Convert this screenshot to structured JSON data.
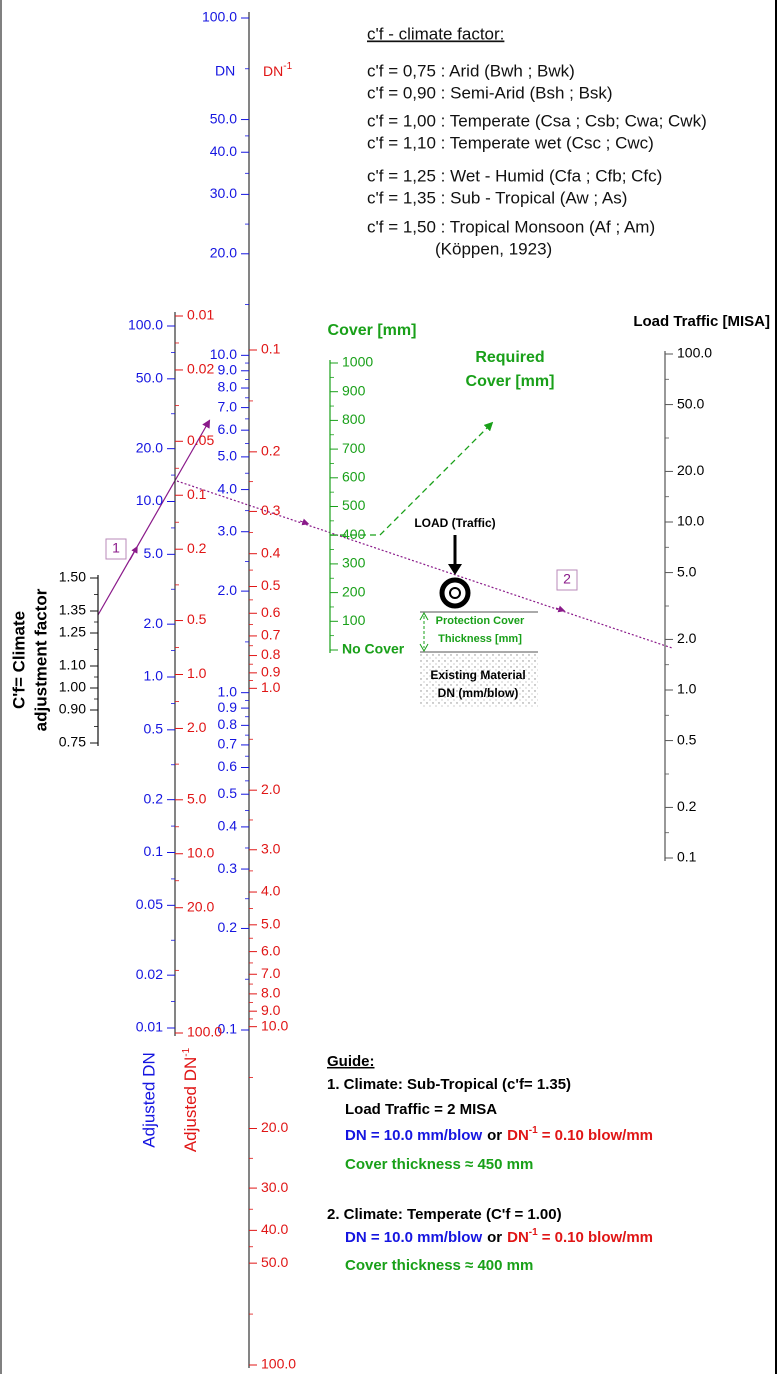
{
  "legend": {
    "title": "c'f - climate factor:",
    "items": [
      "c'f = 0,75 : Arid (Bwh ; Bwk)",
      "c'f = 0,90 : Semi-Arid (Bsh ; Bsk)",
      "c'f = 1,00 : Temperate  (Csa ; Csb; Cwa; Cwk)",
      "c'f = 1,10 : Temperate wet (Csc ; Cwc)",
      "c'f = 1,25 : Wet - Humid (Cfa ; Cfb; Cfc)",
      "c'f = 1,35 : Sub - Tropical (Aw ; As)",
      "c'f = 1,50 : Tropical Monsoon (Af ; Am)"
    ],
    "source": "(Köppen, 1923)"
  },
  "main_scale": {
    "dn_label": "DN",
    "dn_inv_label": {
      "base": "DN",
      "sup": "-1"
    },
    "dn_ticks": [
      {
        "value": 100,
        "label": "100.0"
      },
      {
        "value": 50,
        "label": "50.0"
      },
      {
        "value": 40,
        "label": "40.0"
      },
      {
        "value": 30,
        "label": "30.0"
      },
      {
        "value": 20,
        "label": "20.0"
      },
      {
        "value": 10,
        "label": "10.0"
      },
      {
        "value": 9,
        "label": "9.0"
      },
      {
        "value": 8,
        "label": "8.0"
      },
      {
        "value": 7,
        "label": "7.0"
      },
      {
        "value": 6,
        "label": "6.0"
      },
      {
        "value": 5,
        "label": "5.0"
      },
      {
        "value": 4,
        "label": "4.0"
      },
      {
        "value": 3,
        "label": "3.0"
      },
      {
        "value": 2,
        "label": "2.0"
      },
      {
        "value": 1,
        "label": "1.0"
      },
      0.9,
      0.8,
      0.7,
      0.6,
      0.5,
      0.4,
      0.3,
      0.2,
      0.1
    ],
    "dn_inv_ticks": [
      0.1,
      0.2,
      0.3,
      0.4,
      0.5,
      0.6,
      0.7,
      0.8,
      0.9,
      {
        "value": 1,
        "label": "1.0"
      },
      {
        "value": 2,
        "label": "2.0"
      },
      {
        "value": 3,
        "label": "3.0"
      },
      {
        "value": 4,
        "label": "4.0"
      },
      {
        "value": 5,
        "label": "5.0"
      },
      {
        "value": 6,
        "label": "6.0"
      },
      {
        "value": 7,
        "label": "7.0"
      },
      {
        "value": 8,
        "label": "8.0"
      },
      {
        "value": 9,
        "label": "9.0"
      },
      {
        "value": 10,
        "label": "10.0"
      },
      {
        "value": 20,
        "label": "20.0"
      },
      {
        "value": 30,
        "label": "30.0"
      },
      {
        "value": 40,
        "label": "40.0"
      },
      {
        "value": 50,
        "label": "50.0"
      },
      {
        "value": 100,
        "label": "100.0"
      }
    ]
  },
  "adjusted_scale": {
    "dn_label": "Adjusted DN",
    "dn_inv_label": {
      "base": "Adjusted DN",
      "sup": "-1"
    },
    "dn_ticks": [
      {
        "value": 100,
        "label": "100.0"
      },
      {
        "value": 50,
        "label": "50.0"
      },
      {
        "value": 20,
        "label": "20.0"
      },
      {
        "value": 10,
        "label": "10.0"
      },
      {
        "value": 5,
        "label": "5.0"
      },
      {
        "value": 2,
        "label": "2.0"
      },
      {
        "value": 1,
        "label": "1.0"
      },
      0.5,
      0.2,
      0.1,
      0.05,
      0.02,
      0.01
    ],
    "dn_inv_ticks": [
      0.01,
      0.02,
      0.05,
      0.1,
      0.2,
      0.5,
      {
        "value": 1,
        "label": "1.0"
      },
      {
        "value": 2,
        "label": "2.0"
      },
      {
        "value": 5,
        "label": "5.0"
      },
      {
        "value": 10,
        "label": "10.0"
      },
      {
        "value": 20,
        "label": "20.0"
      },
      {
        "value": 100,
        "label": "100.0"
      }
    ]
  },
  "climate_scale": {
    "label": [
      "C'f= Climate",
      "adjustment factor"
    ],
    "ticks": [
      {
        "value": 1.5,
        "label": "1.50"
      },
      1.35,
      1.25,
      {
        "value": 1.1,
        "label": "1.10"
      },
      {
        "value": 1,
        "label": "1.00"
      },
      {
        "value": 0.9,
        "label": "0.90"
      },
      0.75
    ]
  },
  "cover_scale": {
    "label": "Cover [mm]",
    "ticks": [
      1000,
      900,
      800,
      700,
      600,
      500,
      400,
      300,
      200,
      100,
      {
        "value": 0,
        "label": "No Cover"
      }
    ]
  },
  "required_cover": [
    "Required",
    "Cover [mm]"
  ],
  "traffic_scale": {
    "label": "Load Traffic [MISA]",
    "ticks": [
      {
        "value": 100,
        "label": "100.0"
      },
      {
        "value": 50,
        "label": "50.0"
      },
      {
        "value": 20,
        "label": "20.0"
      },
      {
        "value": 10,
        "label": "10.0"
      },
      {
        "value": 5,
        "label": "5.0"
      },
      {
        "value": 2,
        "label": "2.0"
      },
      {
        "value": 1,
        "label": "1.0"
      },
      0.5,
      0.2,
      0.1
    ]
  },
  "sketch": {
    "load": "LOAD (Traffic)",
    "protection": [
      "Protection Cover",
      "Thickness [mm]"
    ],
    "existing": [
      "Existing Material",
      "DN (mm/blow)"
    ]
  },
  "markers": [
    "1",
    "2"
  ],
  "guide": {
    "title": "Guide:",
    "steps": [
      {
        "title": "1. Climate: Sub-Tropical (c'f= 1.35)",
        "traffic": "Load Traffic = 2 MISA",
        "dn": "DN = 10.0 mm/blow",
        "or": "or",
        "dn_inv": {
          "base": "DN",
          "sup": "-1",
          "rest": "= 0.10 blow/mm"
        },
        "cover": "Cover thickness ≈ 450 mm"
      },
      {
        "title": "2. Climate: Temperate (C'f = 1.00)",
        "dn": "DN = 10.0 mm/blow",
        "or": "or",
        "dn_inv": {
          "base": "DN",
          "sup": "-1",
          "rest": "= 0.10 blow/mm"
        },
        "cover": "Cover thickness ≈ 400 mm"
      }
    ]
  }
}
